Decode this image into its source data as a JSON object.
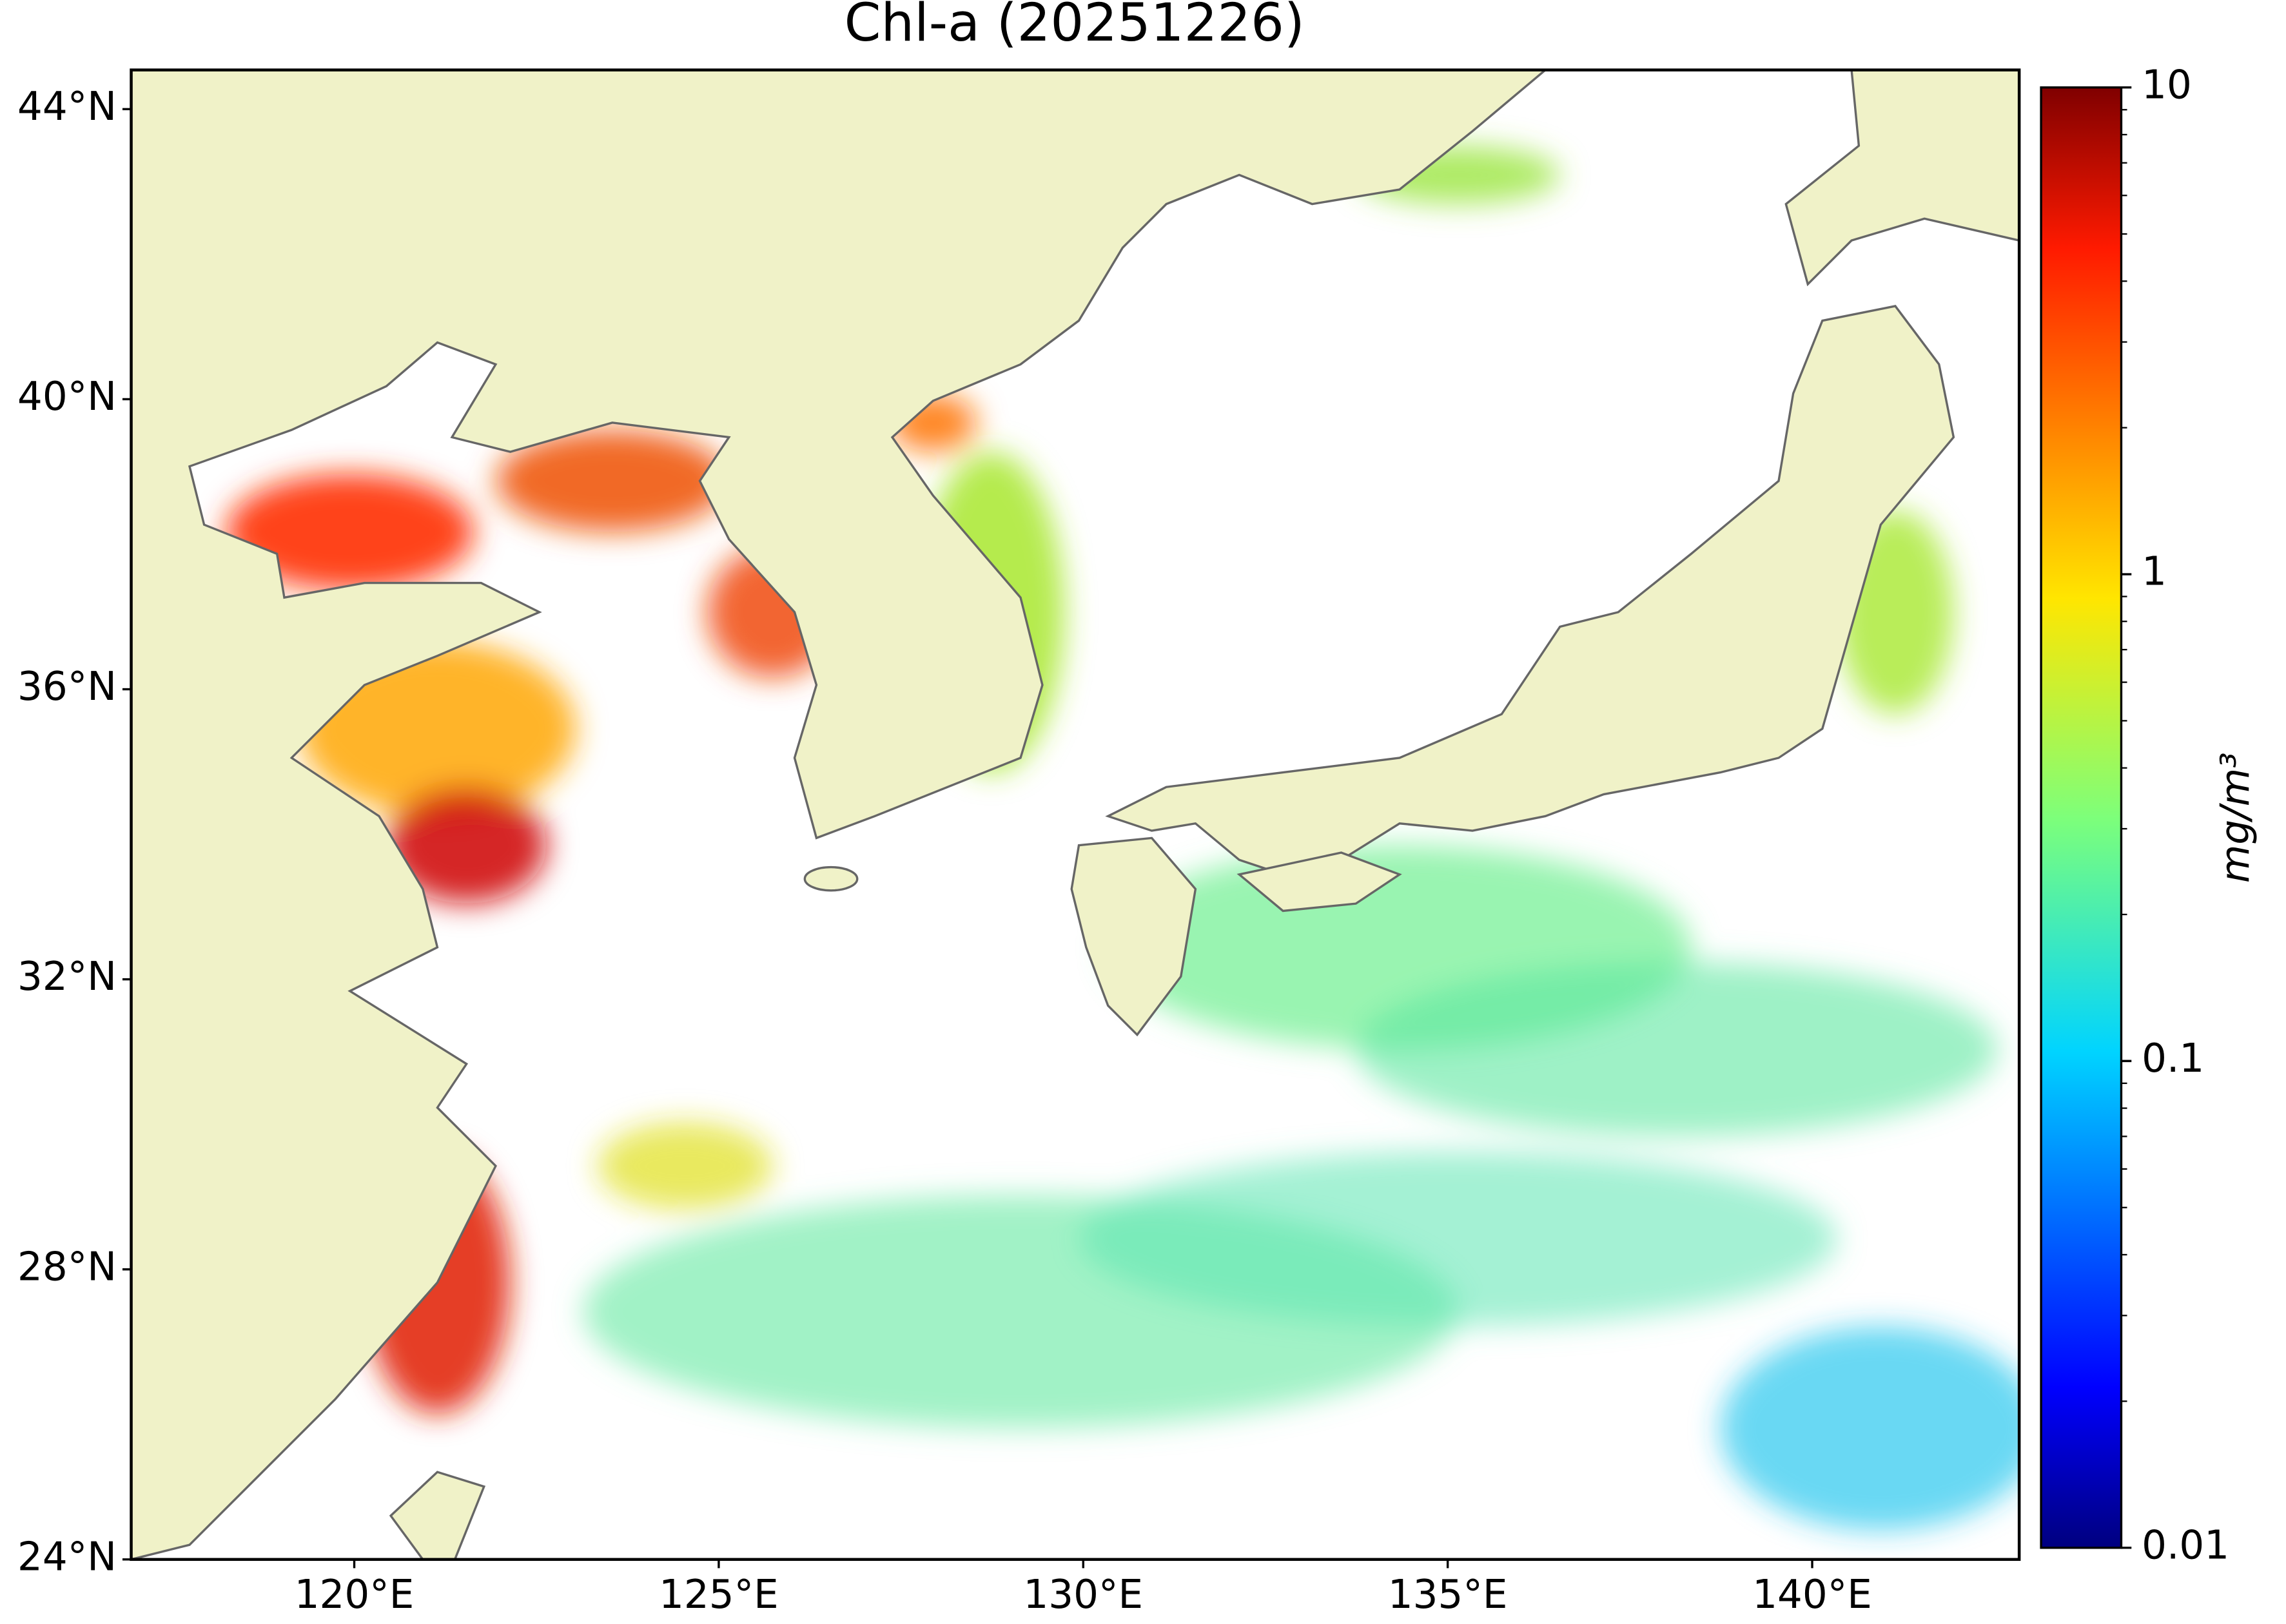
{
  "chart_data": {
    "type": "map",
    "title": "Chl-a (20251226)",
    "xlim": [
      116.94,
      142.84
    ],
    "ylim": [
      24,
      44.54
    ],
    "xticks": [
      {
        "value": 120,
        "label": "120°E"
      },
      {
        "value": 125,
        "label": "125°E"
      },
      {
        "value": 130,
        "label": "130°E"
      },
      {
        "value": 135,
        "label": "135°E"
      },
      {
        "value": 140,
        "label": "140°E"
      }
    ],
    "yticks": [
      {
        "value": 24,
        "label": "24°N"
      },
      {
        "value": 28,
        "label": "28°N"
      },
      {
        "value": 32,
        "label": "32°N"
      },
      {
        "value": 36,
        "label": "36°N"
      },
      {
        "value": 40,
        "label": "40°N"
      },
      {
        "value": 44,
        "label": "44°N"
      }
    ],
    "colorbar": {
      "label": "mg/m³",
      "scale": "log",
      "lim": [
        0.01,
        10
      ],
      "ticks": [
        0.01,
        0.1,
        1,
        10
      ]
    }
  }
}
